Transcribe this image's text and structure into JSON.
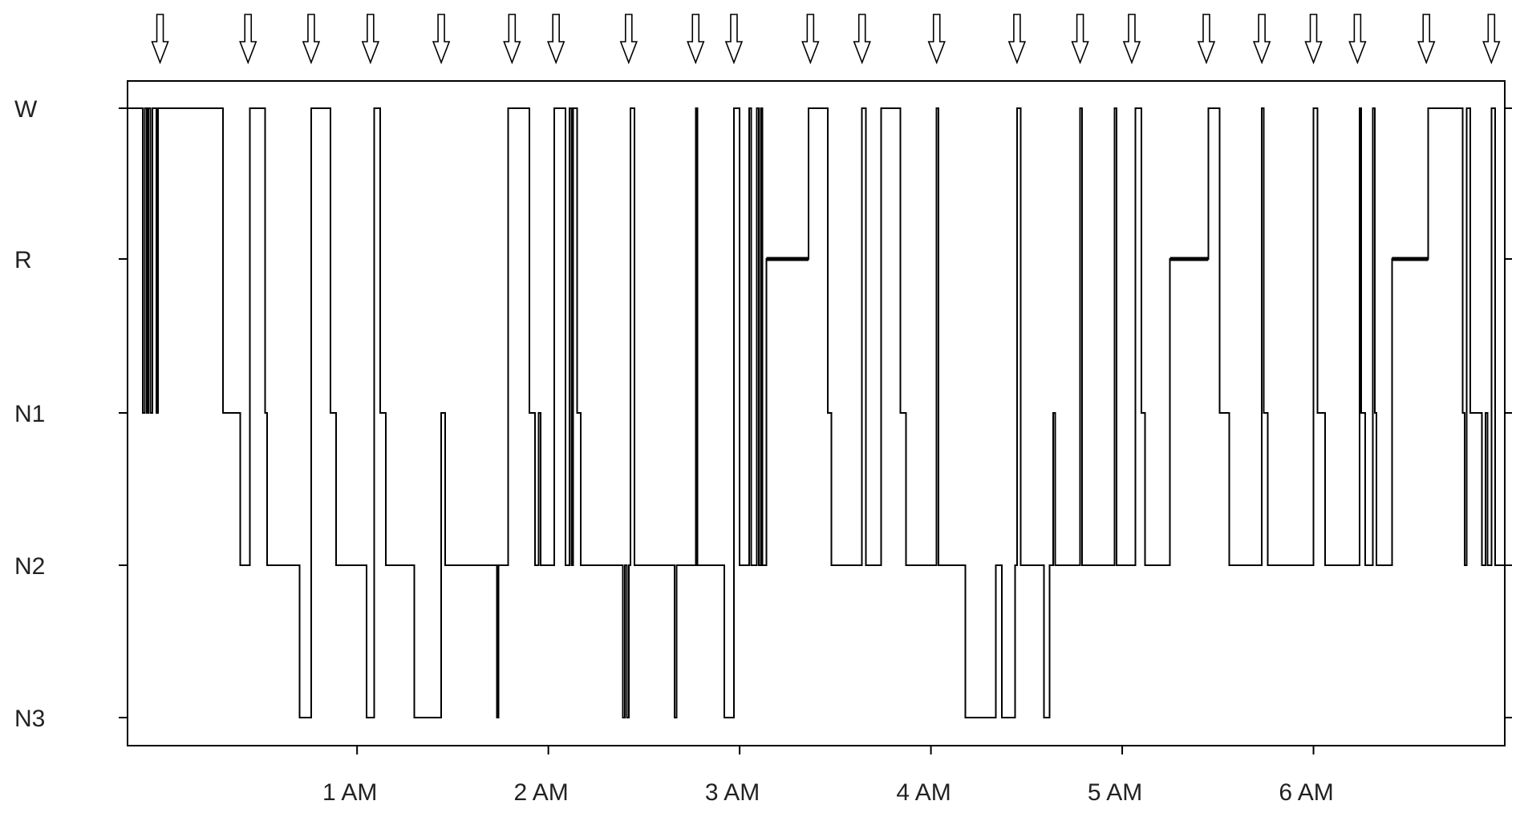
{
  "chart_data": {
    "type": "line",
    "step": true,
    "y_categories": [
      "W",
      "R",
      "N1",
      "N2",
      "N3"
    ],
    "x_ticks": [
      {
        "value": 1,
        "label": "1 AM"
      },
      {
        "value": 2,
        "label": "2 AM"
      },
      {
        "value": 3,
        "label": "3 AM"
      },
      {
        "value": 4,
        "label": "4 AM"
      },
      {
        "value": 5,
        "label": "5 AM"
      },
      {
        "value": 6,
        "label": "6 AM"
      }
    ],
    "xlim": [
      -0.2,
      7.0
    ],
    "x_units": "hours after midnight",
    "grid": false,
    "legend": "none",
    "marker_times": [
      -0.03,
      0.43,
      0.76,
      1.07,
      1.44,
      1.81,
      2.04,
      2.42,
      2.77,
      2.97,
      3.37,
      3.64,
      4.03,
      4.45,
      4.78,
      5.05,
      5.44,
      5.73,
      6.0,
      6.23,
      6.59,
      6.93
    ],
    "hypnogram": [
      [
        -0.2,
        "W"
      ],
      [
        -0.12,
        "N1"
      ],
      [
        -0.11,
        "W"
      ],
      [
        -0.1,
        "N1"
      ],
      [
        -0.09,
        "W"
      ],
      [
        -0.08,
        "N1"
      ],
      [
        -0.07,
        "W"
      ],
      [
        -0.05,
        "N1"
      ],
      [
        -0.04,
        "W"
      ],
      [
        0.3,
        "N1"
      ],
      [
        0.39,
        "N2"
      ],
      [
        0.44,
        "W"
      ],
      [
        0.52,
        "N1"
      ],
      [
        0.53,
        "N2"
      ],
      [
        0.7,
        "N3"
      ],
      [
        0.76,
        "W"
      ],
      [
        0.86,
        "N1"
      ],
      [
        0.89,
        "N2"
      ],
      [
        1.05,
        "N3"
      ],
      [
        1.09,
        "W"
      ],
      [
        1.12,
        "N1"
      ],
      [
        1.15,
        "N2"
      ],
      [
        1.3,
        "N3"
      ],
      [
        1.44,
        "N1"
      ],
      [
        1.46,
        "N2"
      ],
      [
        1.73,
        "N3"
      ],
      [
        1.74,
        "N2"
      ],
      [
        1.79,
        "W"
      ],
      [
        1.9,
        "N1"
      ],
      [
        1.93,
        "N2"
      ],
      [
        1.95,
        "N1"
      ],
      [
        1.96,
        "N2"
      ],
      [
        2.03,
        "W"
      ],
      [
        2.09,
        "N2"
      ],
      [
        2.11,
        "W"
      ],
      [
        2.12,
        "N2"
      ],
      [
        2.13,
        "W"
      ],
      [
        2.15,
        "N1"
      ],
      [
        2.17,
        "N2"
      ],
      [
        2.39,
        "N3"
      ],
      [
        2.4,
        "N2"
      ],
      [
        2.41,
        "N3"
      ],
      [
        2.42,
        "N2"
      ],
      [
        2.43,
        "W"
      ],
      [
        2.45,
        "N2"
      ],
      [
        2.66,
        "N3"
      ],
      [
        2.67,
        "N2"
      ],
      [
        2.77,
        "W"
      ],
      [
        2.78,
        "N2"
      ],
      [
        2.92,
        "N3"
      ],
      [
        2.97,
        "W"
      ],
      [
        3.0,
        "N2"
      ],
      [
        3.05,
        "W"
      ],
      [
        3.06,
        "N2"
      ],
      [
        3.09,
        "W"
      ],
      [
        3.1,
        "N2"
      ],
      [
        3.11,
        "W"
      ],
      [
        3.12,
        "N2"
      ],
      [
        3.14,
        "R"
      ],
      [
        3.36,
        "W"
      ],
      [
        3.46,
        "N1"
      ],
      [
        3.48,
        "N2"
      ],
      [
        3.64,
        "W"
      ],
      [
        3.66,
        "N2"
      ],
      [
        3.74,
        "W"
      ],
      [
        3.84,
        "N1"
      ],
      [
        3.87,
        "N2"
      ],
      [
        4.03,
        "W"
      ],
      [
        4.04,
        "N2"
      ],
      [
        4.18,
        "N3"
      ],
      [
        4.34,
        "N2"
      ],
      [
        4.37,
        "N3"
      ],
      [
        4.44,
        "N2"
      ],
      [
        4.45,
        "W"
      ],
      [
        4.47,
        "N2"
      ],
      [
        4.59,
        "N3"
      ],
      [
        4.62,
        "N2"
      ],
      [
        4.64,
        "N1"
      ],
      [
        4.65,
        "N2"
      ],
      [
        4.78,
        "W"
      ],
      [
        4.79,
        "N2"
      ],
      [
        4.96,
        "W"
      ],
      [
        4.97,
        "N2"
      ],
      [
        5.07,
        "W"
      ],
      [
        5.1,
        "N1"
      ],
      [
        5.12,
        "N2"
      ],
      [
        5.25,
        "R"
      ],
      [
        5.45,
        "W"
      ],
      [
        5.51,
        "N1"
      ],
      [
        5.56,
        "N2"
      ],
      [
        5.73,
        "W"
      ],
      [
        5.74,
        "N1"
      ],
      [
        5.76,
        "N2"
      ],
      [
        6.0,
        "W"
      ],
      [
        6.02,
        "N1"
      ],
      [
        6.06,
        "N2"
      ],
      [
        6.24,
        "W"
      ],
      [
        6.25,
        "N1"
      ],
      [
        6.27,
        "N2"
      ],
      [
        6.31,
        "W"
      ],
      [
        6.32,
        "N1"
      ],
      [
        6.33,
        "N2"
      ],
      [
        6.41,
        "R"
      ],
      [
        6.6,
        "W"
      ],
      [
        6.78,
        "N1"
      ],
      [
        6.79,
        "N2"
      ],
      [
        6.8,
        "W"
      ],
      [
        6.82,
        "N1"
      ],
      [
        6.88,
        "N2"
      ],
      [
        6.9,
        "N1"
      ],
      [
        6.91,
        "N2"
      ],
      [
        6.93,
        "W"
      ],
      [
        6.95,
        "N2"
      ],
      [
        7.0,
        "N2"
      ]
    ]
  }
}
